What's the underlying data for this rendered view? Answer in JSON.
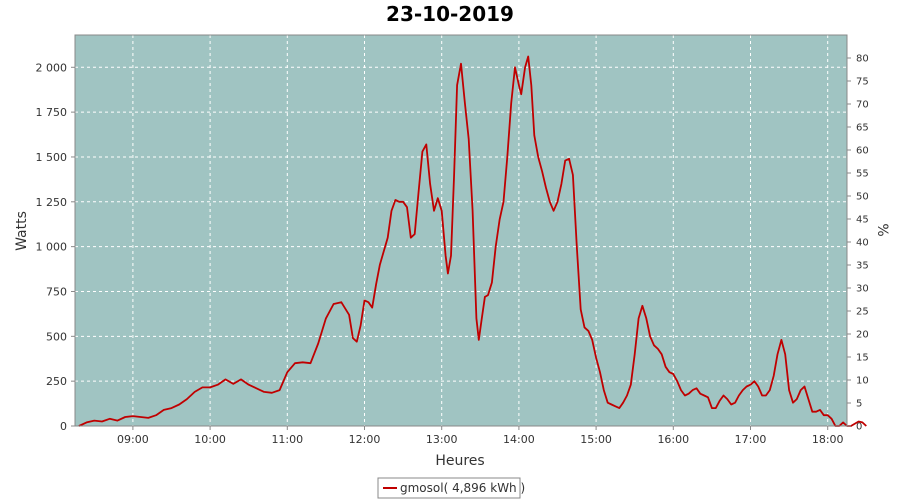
{
  "chart_data": {
    "type": "line",
    "title": "23-10-2019",
    "xlabel": "Heures",
    "ylabel": "Watts",
    "y2label": "%",
    "xlim": [
      8.25,
      18.25
    ],
    "ylim": [
      0,
      2180
    ],
    "y2lim": [
      0,
      85
    ],
    "x_ticks": [
      {
        "v": 9,
        "label": "09:00"
      },
      {
        "v": 10,
        "label": "10:00"
      },
      {
        "v": 11,
        "label": "11:00"
      },
      {
        "v": 12,
        "label": "12:00"
      },
      {
        "v": 13,
        "label": "13:00"
      },
      {
        "v": 14,
        "label": "14:00"
      },
      {
        "v": 15,
        "label": "15:00"
      },
      {
        "v": 16,
        "label": "16:00"
      },
      {
        "v": 17,
        "label": "17:00"
      },
      {
        "v": 18,
        "label": "18:00"
      }
    ],
    "y_ticks": [
      {
        "v": 0,
        "label": "0"
      },
      {
        "v": 250,
        "label": "250"
      },
      {
        "v": 500,
        "label": "500"
      },
      {
        "v": 750,
        "label": "750"
      },
      {
        "v": 1000,
        "label": "1 000"
      },
      {
        "v": 1250,
        "label": "1 250"
      },
      {
        "v": 1500,
        "label": "1 500"
      },
      {
        "v": 1750,
        "label": "1 750"
      },
      {
        "v": 2000,
        "label": "2 000"
      }
    ],
    "y2_ticks": [
      "0",
      "5",
      "10",
      "15",
      "20",
      "25",
      "30",
      "35",
      "40",
      "45",
      "50",
      "55",
      "60",
      "65",
      "70",
      "75",
      "80"
    ],
    "grid": true,
    "legend_position": "bottom-center",
    "colors": {
      "plot_bg": "#a0c4c2",
      "line": "#c00000",
      "grid": "#ffffff"
    },
    "series": [
      {
        "name": "gmosol( 4,896 kWh )",
        "color": "#c00000",
        "points": [
          [
            8.3,
            0
          ],
          [
            8.4,
            20
          ],
          [
            8.5,
            30
          ],
          [
            8.6,
            25
          ],
          [
            8.7,
            40
          ],
          [
            8.8,
            30
          ],
          [
            8.9,
            50
          ],
          [
            9.0,
            55
          ],
          [
            9.1,
            50
          ],
          [
            9.2,
            45
          ],
          [
            9.3,
            60
          ],
          [
            9.4,
            90
          ],
          [
            9.5,
            100
          ],
          [
            9.6,
            120
          ],
          [
            9.7,
            150
          ],
          [
            9.8,
            190
          ],
          [
            9.9,
            215
          ],
          [
            10.0,
            215
          ],
          [
            10.1,
            230
          ],
          [
            10.2,
            260
          ],
          [
            10.3,
            235
          ],
          [
            10.4,
            260
          ],
          [
            10.5,
            230
          ],
          [
            10.6,
            210
          ],
          [
            10.7,
            190
          ],
          [
            10.8,
            185
          ],
          [
            10.9,
            200
          ],
          [
            11.0,
            300
          ],
          [
            11.1,
            350
          ],
          [
            11.2,
            355
          ],
          [
            11.3,
            350
          ],
          [
            11.4,
            460
          ],
          [
            11.5,
            600
          ],
          [
            11.6,
            680
          ],
          [
            11.7,
            690
          ],
          [
            11.8,
            620
          ],
          [
            11.85,
            490
          ],
          [
            11.9,
            470
          ],
          [
            11.95,
            560
          ],
          [
            12.0,
            700
          ],
          [
            12.05,
            690
          ],
          [
            12.1,
            660
          ],
          [
            12.15,
            790
          ],
          [
            12.2,
            900
          ],
          [
            12.3,
            1050
          ],
          [
            12.35,
            1200
          ],
          [
            12.4,
            1260
          ],
          [
            12.45,
            1250
          ],
          [
            12.5,
            1250
          ],
          [
            12.55,
            1220
          ],
          [
            12.6,
            1050
          ],
          [
            12.65,
            1070
          ],
          [
            12.7,
            1300
          ],
          [
            12.75,
            1530
          ],
          [
            12.8,
            1570
          ],
          [
            12.85,
            1350
          ],
          [
            12.9,
            1200
          ],
          [
            12.95,
            1270
          ],
          [
            13.0,
            1200
          ],
          [
            13.05,
            950
          ],
          [
            13.08,
            850
          ],
          [
            13.12,
            950
          ],
          [
            13.16,
            1400
          ],
          [
            13.2,
            1900
          ],
          [
            13.25,
            2020
          ],
          [
            13.3,
            1800
          ],
          [
            13.35,
            1600
          ],
          [
            13.4,
            1200
          ],
          [
            13.45,
            600
          ],
          [
            13.48,
            480
          ],
          [
            13.52,
            600
          ],
          [
            13.56,
            720
          ],
          [
            13.6,
            730
          ],
          [
            13.65,
            800
          ],
          [
            13.7,
            1000
          ],
          [
            13.75,
            1150
          ],
          [
            13.8,
            1250
          ],
          [
            13.85,
            1500
          ],
          [
            13.9,
            1800
          ],
          [
            13.95,
            2000
          ],
          [
            14.0,
            1900
          ],
          [
            14.03,
            1850
          ],
          [
            14.08,
            2000
          ],
          [
            14.12,
            2060
          ],
          [
            14.16,
            1900
          ],
          [
            14.2,
            1620
          ],
          [
            14.25,
            1500
          ],
          [
            14.3,
            1420
          ],
          [
            14.35,
            1330
          ],
          [
            14.4,
            1250
          ],
          [
            14.45,
            1200
          ],
          [
            14.5,
            1250
          ],
          [
            14.55,
            1350
          ],
          [
            14.6,
            1480
          ],
          [
            14.65,
            1490
          ],
          [
            14.7,
            1400
          ],
          [
            14.75,
            1000
          ],
          [
            14.8,
            650
          ],
          [
            14.85,
            550
          ],
          [
            14.9,
            530
          ],
          [
            14.95,
            480
          ],
          [
            15.0,
            380
          ],
          [
            15.05,
            300
          ],
          [
            15.1,
            200
          ],
          [
            15.15,
            130
          ],
          [
            15.2,
            120
          ],
          [
            15.25,
            110
          ],
          [
            15.3,
            100
          ],
          [
            15.35,
            130
          ],
          [
            15.4,
            170
          ],
          [
            15.45,
            230
          ],
          [
            15.5,
            400
          ],
          [
            15.55,
            600
          ],
          [
            15.6,
            670
          ],
          [
            15.65,
            600
          ],
          [
            15.7,
            500
          ],
          [
            15.75,
            450
          ],
          [
            15.8,
            430
          ],
          [
            15.85,
            400
          ],
          [
            15.9,
            330
          ],
          [
            15.95,
            300
          ],
          [
            16.0,
            290
          ],
          [
            16.05,
            250
          ],
          [
            16.1,
            200
          ],
          [
            16.15,
            170
          ],
          [
            16.2,
            180
          ],
          [
            16.25,
            200
          ],
          [
            16.3,
            210
          ],
          [
            16.35,
            180
          ],
          [
            16.4,
            170
          ],
          [
            16.45,
            160
          ],
          [
            16.5,
            100
          ],
          [
            16.55,
            100
          ],
          [
            16.6,
            140
          ],
          [
            16.65,
            170
          ],
          [
            16.7,
            150
          ],
          [
            16.75,
            120
          ],
          [
            16.8,
            130
          ],
          [
            16.85,
            170
          ],
          [
            16.9,
            200
          ],
          [
            16.95,
            220
          ],
          [
            17.0,
            230
          ],
          [
            17.05,
            250
          ],
          [
            17.1,
            220
          ],
          [
            17.15,
            170
          ],
          [
            17.2,
            170
          ],
          [
            17.25,
            200
          ],
          [
            17.3,
            280
          ],
          [
            17.35,
            400
          ],
          [
            17.4,
            480
          ],
          [
            17.45,
            400
          ],
          [
            17.5,
            200
          ],
          [
            17.55,
            130
          ],
          [
            17.6,
            150
          ],
          [
            17.65,
            200
          ],
          [
            17.7,
            220
          ],
          [
            17.75,
            150
          ],
          [
            17.8,
            80
          ],
          [
            17.85,
            80
          ],
          [
            17.9,
            90
          ],
          [
            17.95,
            60
          ],
          [
            18.0,
            60
          ],
          [
            18.05,
            40
          ],
          [
            18.1,
            0
          ],
          [
            18.15,
            0
          ],
          [
            18.2,
            20
          ],
          [
            18.25,
            0
          ],
          [
            18.3,
            0
          ],
          [
            18.4,
            25
          ],
          [
            18.45,
            20
          ],
          [
            18.5,
            0
          ]
        ]
      }
    ]
  }
}
